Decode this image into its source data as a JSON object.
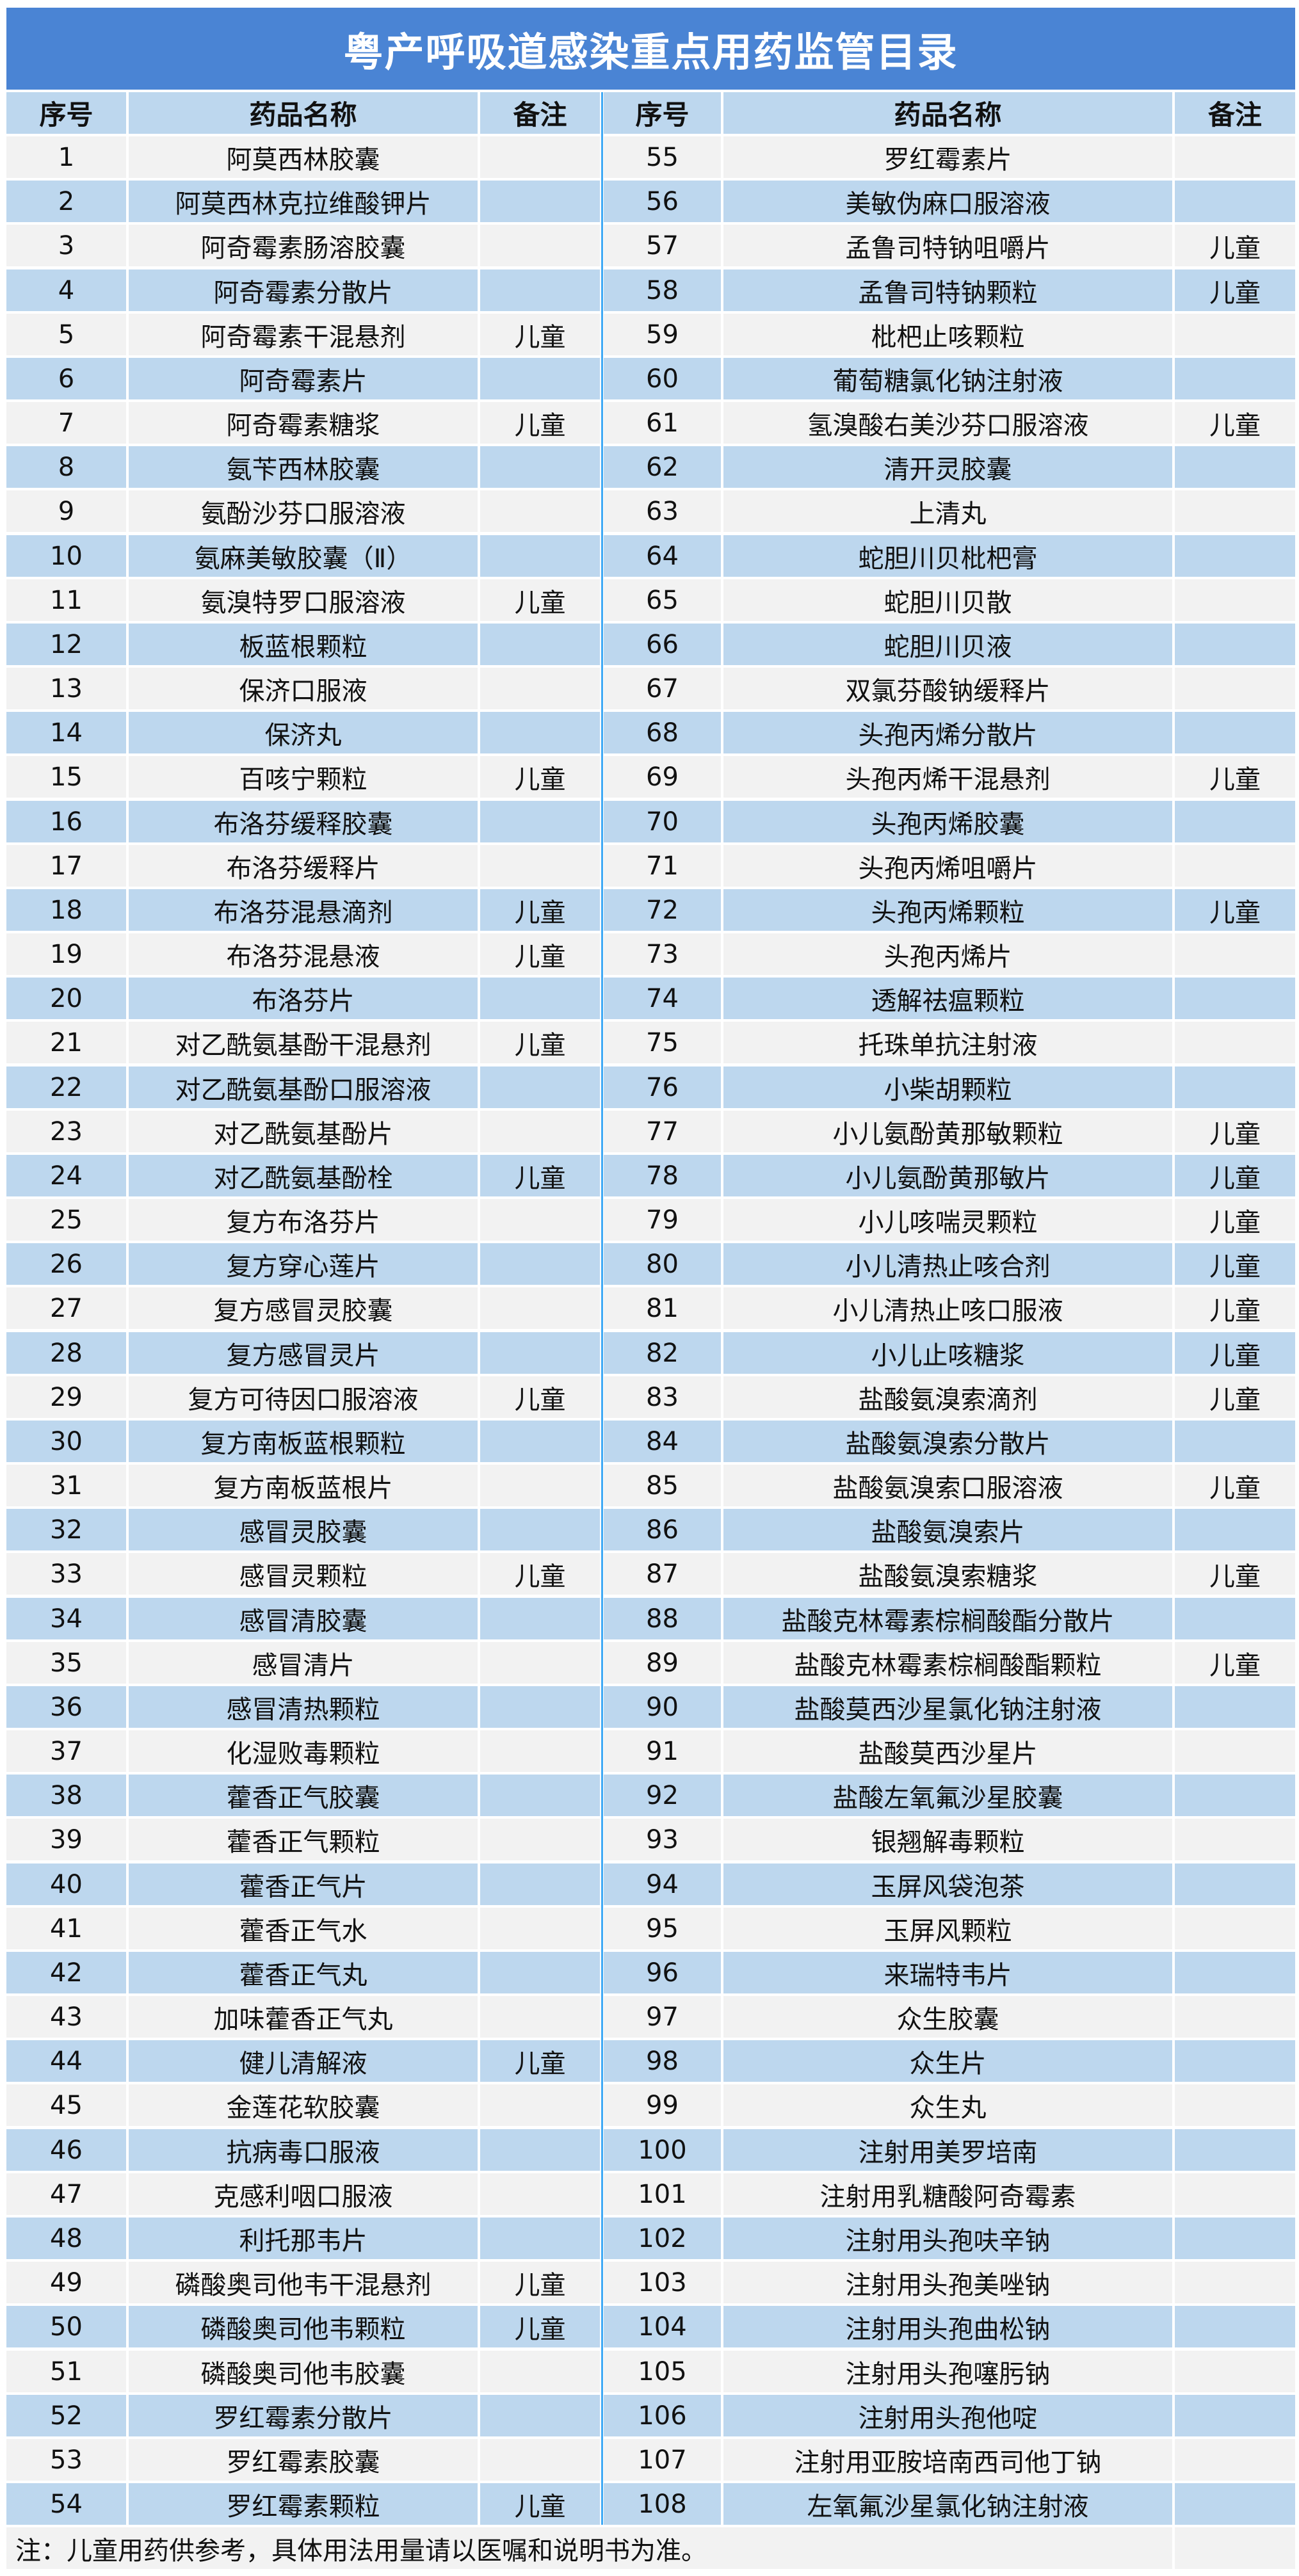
{
  "title": "粤产呼吸道感染重点用药监管目录",
  "headers": {
    "no": "序号",
    "name": "药品名称",
    "note": "备注"
  },
  "colors": {
    "title_bg": "#4a84d4",
    "row_blue": "#bdd7ee",
    "row_gray": "#f2f2f2",
    "divider": "#3fa9f5"
  },
  "left": [
    {
      "no": "1",
      "name": "阿莫西林胶囊",
      "note": ""
    },
    {
      "no": "2",
      "name": "阿莫西林克拉维酸钾片",
      "note": ""
    },
    {
      "no": "3",
      "name": "阿奇霉素肠溶胶囊",
      "note": ""
    },
    {
      "no": "4",
      "name": "阿奇霉素分散片",
      "note": ""
    },
    {
      "no": "5",
      "name": "阿奇霉素干混悬剂",
      "note": "儿童"
    },
    {
      "no": "6",
      "name": "阿奇霉素片",
      "note": ""
    },
    {
      "no": "7",
      "name": "阿奇霉素糖浆",
      "note": "儿童"
    },
    {
      "no": "8",
      "name": "氨苄西林胶囊",
      "note": ""
    },
    {
      "no": "9",
      "name": "氨酚沙芬口服溶液",
      "note": ""
    },
    {
      "no": "10",
      "name": "氨麻美敏胶囊（Ⅱ）",
      "note": ""
    },
    {
      "no": "11",
      "name": "氨溴特罗口服溶液",
      "note": "儿童"
    },
    {
      "no": "12",
      "name": "板蓝根颗粒",
      "note": ""
    },
    {
      "no": "13",
      "name": "保济口服液",
      "note": ""
    },
    {
      "no": "14",
      "name": "保济丸",
      "note": ""
    },
    {
      "no": "15",
      "name": "百咳宁颗粒",
      "note": "儿童"
    },
    {
      "no": "16",
      "name": "布洛芬缓释胶囊",
      "note": ""
    },
    {
      "no": "17",
      "name": "布洛芬缓释片",
      "note": ""
    },
    {
      "no": "18",
      "name": "布洛芬混悬滴剂",
      "note": "儿童"
    },
    {
      "no": "19",
      "name": "布洛芬混悬液",
      "note": "儿童"
    },
    {
      "no": "20",
      "name": "布洛芬片",
      "note": ""
    },
    {
      "no": "21",
      "name": "对乙酰氨基酚干混悬剂",
      "note": "儿童"
    },
    {
      "no": "22",
      "name": "对乙酰氨基酚口服溶液",
      "note": ""
    },
    {
      "no": "23",
      "name": "对乙酰氨基酚片",
      "note": ""
    },
    {
      "no": "24",
      "name": "对乙酰氨基酚栓",
      "note": "儿童"
    },
    {
      "no": "25",
      "name": "复方布洛芬片",
      "note": ""
    },
    {
      "no": "26",
      "name": "复方穿心莲片",
      "note": ""
    },
    {
      "no": "27",
      "name": "复方感冒灵胶囊",
      "note": ""
    },
    {
      "no": "28",
      "name": "复方感冒灵片",
      "note": ""
    },
    {
      "no": "29",
      "name": "复方可待因口服溶液",
      "note": "儿童"
    },
    {
      "no": "30",
      "name": "复方南板蓝根颗粒",
      "note": ""
    },
    {
      "no": "31",
      "name": "复方南板蓝根片",
      "note": ""
    },
    {
      "no": "32",
      "name": "感冒灵胶囊",
      "note": ""
    },
    {
      "no": "33",
      "name": "感冒灵颗粒",
      "note": "儿童"
    },
    {
      "no": "34",
      "name": "感冒清胶囊",
      "note": ""
    },
    {
      "no": "35",
      "name": "感冒清片",
      "note": ""
    },
    {
      "no": "36",
      "name": "感冒清热颗粒",
      "note": ""
    },
    {
      "no": "37",
      "name": "化湿败毒颗粒",
      "note": ""
    },
    {
      "no": "38",
      "name": "藿香正气胶囊",
      "note": ""
    },
    {
      "no": "39",
      "name": "藿香正气颗粒",
      "note": ""
    },
    {
      "no": "40",
      "name": "藿香正气片",
      "note": ""
    },
    {
      "no": "41",
      "name": "藿香正气水",
      "note": ""
    },
    {
      "no": "42",
      "name": "藿香正气丸",
      "note": ""
    },
    {
      "no": "43",
      "name": "加味藿香正气丸",
      "note": ""
    },
    {
      "no": "44",
      "name": "健儿清解液",
      "note": "儿童"
    },
    {
      "no": "45",
      "name": "金莲花软胶囊",
      "note": ""
    },
    {
      "no": "46",
      "name": "抗病毒口服液",
      "note": ""
    },
    {
      "no": "47",
      "name": "克感利咽口服液",
      "note": ""
    },
    {
      "no": "48",
      "name": "利托那韦片",
      "note": ""
    },
    {
      "no": "49",
      "name": "磷酸奥司他韦干混悬剂",
      "note": "儿童"
    },
    {
      "no": "50",
      "name": "磷酸奥司他韦颗粒",
      "note": "儿童"
    },
    {
      "no": "51",
      "name": "磷酸奥司他韦胶囊",
      "note": ""
    },
    {
      "no": "52",
      "name": "罗红霉素分散片",
      "note": ""
    },
    {
      "no": "53",
      "name": "罗红霉素胶囊",
      "note": ""
    },
    {
      "no": "54",
      "name": "罗红霉素颗粒",
      "note": "儿童"
    }
  ],
  "right": [
    {
      "no": "55",
      "name": "罗红霉素片",
      "note": ""
    },
    {
      "no": "56",
      "name": "美敏伪麻口服溶液",
      "note": ""
    },
    {
      "no": "57",
      "name": "孟鲁司特钠咀嚼片",
      "note": "儿童"
    },
    {
      "no": "58",
      "name": "孟鲁司特钠颗粒",
      "note": "儿童"
    },
    {
      "no": "59",
      "name": "枇杷止咳颗粒",
      "note": ""
    },
    {
      "no": "60",
      "name": "葡萄糖氯化钠注射液",
      "note": ""
    },
    {
      "no": "61",
      "name": "氢溴酸右美沙芬口服溶液",
      "note": "儿童"
    },
    {
      "no": "62",
      "name": "清开灵胶囊",
      "note": ""
    },
    {
      "no": "63",
      "name": "上清丸",
      "note": ""
    },
    {
      "no": "64",
      "name": "蛇胆川贝枇杷膏",
      "note": ""
    },
    {
      "no": "65",
      "name": "蛇胆川贝散",
      "note": ""
    },
    {
      "no": "66",
      "name": "蛇胆川贝液",
      "note": ""
    },
    {
      "no": "67",
      "name": "双氯芬酸钠缓释片",
      "note": ""
    },
    {
      "no": "68",
      "name": "头孢丙烯分散片",
      "note": ""
    },
    {
      "no": "69",
      "name": "头孢丙烯干混悬剂",
      "note": "儿童"
    },
    {
      "no": "70",
      "name": "头孢丙烯胶囊",
      "note": ""
    },
    {
      "no": "71",
      "name": "头孢丙烯咀嚼片",
      "note": ""
    },
    {
      "no": "72",
      "name": "头孢丙烯颗粒",
      "note": "儿童"
    },
    {
      "no": "73",
      "name": "头孢丙烯片",
      "note": ""
    },
    {
      "no": "74",
      "name": "透解祛瘟颗粒",
      "note": ""
    },
    {
      "no": "75",
      "name": "托珠单抗注射液",
      "note": ""
    },
    {
      "no": "76",
      "name": "小柴胡颗粒",
      "note": ""
    },
    {
      "no": "77",
      "name": "小儿氨酚黄那敏颗粒",
      "note": "儿童"
    },
    {
      "no": "78",
      "name": "小儿氨酚黄那敏片",
      "note": "儿童"
    },
    {
      "no": "79",
      "name": "小儿咳喘灵颗粒",
      "note": "儿童"
    },
    {
      "no": "80",
      "name": "小儿清热止咳合剂",
      "note": "儿童"
    },
    {
      "no": "81",
      "name": "小儿清热止咳口服液",
      "note": "儿童"
    },
    {
      "no": "82",
      "name": "小儿止咳糖浆",
      "note": "儿童"
    },
    {
      "no": "83",
      "name": "盐酸氨溴索滴剂",
      "note": "儿童"
    },
    {
      "no": "84",
      "name": "盐酸氨溴索分散片",
      "note": ""
    },
    {
      "no": "85",
      "name": "盐酸氨溴索口服溶液",
      "note": "儿童"
    },
    {
      "no": "86",
      "name": "盐酸氨溴索片",
      "note": ""
    },
    {
      "no": "87",
      "name": "盐酸氨溴索糖浆",
      "note": "儿童"
    },
    {
      "no": "88",
      "name": "盐酸克林霉素棕榈酸酯分散片",
      "note": ""
    },
    {
      "no": "89",
      "name": "盐酸克林霉素棕榈酸酯颗粒",
      "note": "儿童"
    },
    {
      "no": "90",
      "name": "盐酸莫西沙星氯化钠注射液",
      "note": ""
    },
    {
      "no": "91",
      "name": "盐酸莫西沙星片",
      "note": ""
    },
    {
      "no": "92",
      "name": "盐酸左氧氟沙星胶囊",
      "note": ""
    },
    {
      "no": "93",
      "name": "银翘解毒颗粒",
      "note": ""
    },
    {
      "no": "94",
      "name": "玉屏风袋泡茶",
      "note": ""
    },
    {
      "no": "95",
      "name": "玉屏风颗粒",
      "note": ""
    },
    {
      "no": "96",
      "name": "来瑞特韦片",
      "note": ""
    },
    {
      "no": "97",
      "name": "众生胶囊",
      "note": ""
    },
    {
      "no": "98",
      "name": "众生片",
      "note": ""
    },
    {
      "no": "99",
      "name": "众生丸",
      "note": ""
    },
    {
      "no": "100",
      "name": "注射用美罗培南",
      "note": ""
    },
    {
      "no": "101",
      "name": "注射用乳糖酸阿奇霉素",
      "note": ""
    },
    {
      "no": "102",
      "name": "注射用头孢呋辛钠",
      "note": ""
    },
    {
      "no": "103",
      "name": "注射用头孢美唑钠",
      "note": ""
    },
    {
      "no": "104",
      "name": "注射用头孢曲松钠",
      "note": ""
    },
    {
      "no": "105",
      "name": "注射用头孢噻肟钠",
      "note": ""
    },
    {
      "no": "106",
      "name": "注射用头孢他啶",
      "note": ""
    },
    {
      "no": "107",
      "name": "注射用亚胺培南西司他丁钠",
      "note": ""
    },
    {
      "no": "108",
      "name": "左氧氟沙星氯化钠注射液",
      "note": ""
    }
  ],
  "footnote": "注：儿童用药供参考，具体用法用量请以医嘱和说明书为准。"
}
